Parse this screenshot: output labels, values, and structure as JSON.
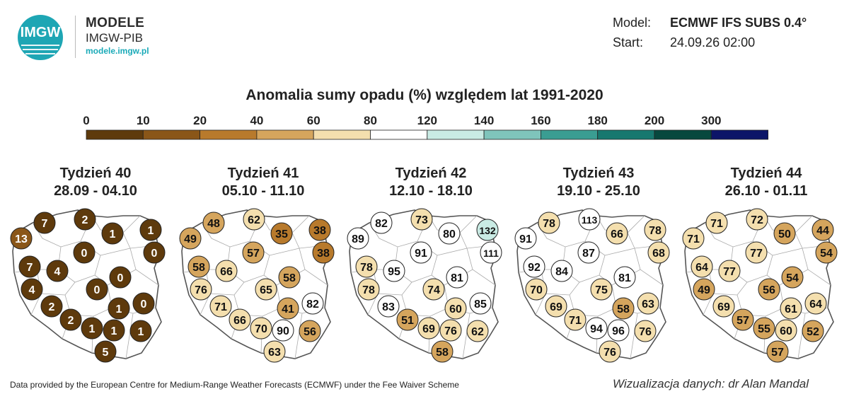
{
  "brand": {
    "logo_text": "IMGW",
    "title": "MODELE",
    "subtitle": "IMGW-PIB",
    "url": "modele.imgw.pl"
  },
  "meta": {
    "model_label": "Model:",
    "model_value": "ECMWF IFS SUBS 0.4°",
    "start_label": "Start:",
    "start_value": "24.09.26 02:00"
  },
  "title": "Anomalia sumy opadu (%) względem lat 1991-2020",
  "legend": {
    "ticks": [
      "0",
      "10",
      "20",
      "40",
      "60",
      "80",
      "120",
      "140",
      "160",
      "180",
      "200",
      "300"
    ],
    "colors": [
      "#5e3a0c",
      "#8a5618",
      "#b87a2c",
      "#d5a55d",
      "#f4dfae",
      "#ffffff",
      "#c9ebe4",
      "#7fc4bb",
      "#3a9d92",
      "#17786f",
      "#07483e",
      "#0c1568"
    ]
  },
  "weeks": [
    {
      "label": "Tydzień 40",
      "dates": "28.09 - 04.10",
      "values": [
        "13",
        "7",
        "2",
        "1",
        "1",
        "0",
        "0",
        "7",
        "4",
        "0",
        "4",
        "0",
        "2",
        "1",
        "0",
        "2",
        "1",
        "1",
        "1",
        "5"
      ]
    },
    {
      "label": "Tydzień 41",
      "dates": "05.10 - 11.10",
      "values": [
        "49",
        "48",
        "62",
        "35",
        "38",
        "57",
        "38",
        "58",
        "66",
        "58",
        "76",
        "65",
        "71",
        "41",
        "82",
        "66",
        "70",
        "90",
        "56",
        "63"
      ]
    },
    {
      "label": "Tydzień 42",
      "dates": "12.10 - 18.10",
      "values": [
        "89",
        "82",
        "73",
        "80",
        "132",
        "91",
        "111",
        "78",
        "95",
        "81",
        "78",
        "74",
        "83",
        "60",
        "85",
        "51",
        "69",
        "76",
        "62",
        "58"
      ]
    },
    {
      "label": "Tydzień 43",
      "dates": "19.10 - 25.10",
      "values": [
        "91",
        "78",
        "113",
        "66",
        "78",
        "87",
        "68",
        "92",
        "84",
        "81",
        "70",
        "75",
        "69",
        "58",
        "63",
        "71",
        "94",
        "96",
        "76",
        "76"
      ]
    },
    {
      "label": "Tydzień 44",
      "dates": "26.10 - 01.11",
      "values": [
        "71",
        "71",
        "72",
        "50",
        "44",
        "77",
        "54",
        "64",
        "77",
        "54",
        "49",
        "56",
        "69",
        "61",
        "64",
        "57",
        "55",
        "60",
        "52",
        "57"
      ]
    }
  ],
  "footer": {
    "source": "Data provided by the European Centre for Medium-Range Weather Forecasts (ECMWF) under the Fee Waiver Scheme",
    "credit": "Wizualizacja danych: dr Alan Mandal"
  }
}
